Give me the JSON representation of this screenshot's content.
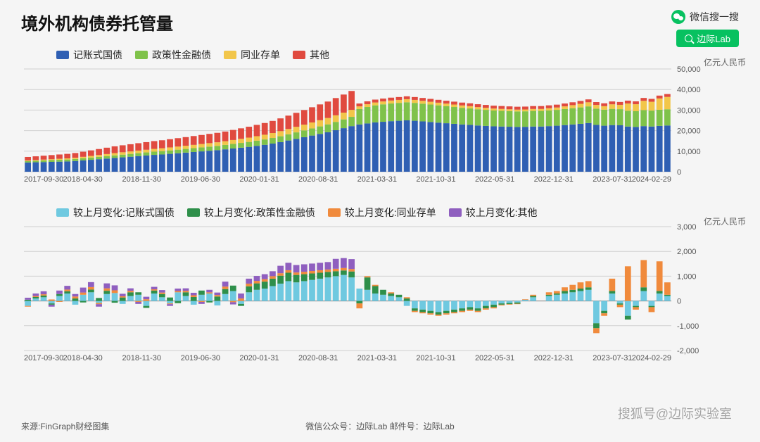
{
  "title": "境外机构债券托管量",
  "wechat_label": "微信搜一搜",
  "search_pill": "边际Lab",
  "source": "来源:FinGraph财经图集",
  "footer_center": "微信公众号：边际Lab  邮件号：边际Lab",
  "watermark": "搜狐号@边际实验室",
  "axis_unit": "亿元人民币",
  "colors": {
    "c1_s1": "#2f5fb3",
    "c1_s2": "#7fc24a",
    "c1_s3": "#f2c64a",
    "c1_s4": "#e04a3f",
    "c2_s1": "#6fc9e0",
    "c2_s2": "#2e8f4a",
    "c2_s3": "#f08a3c",
    "c2_s4": "#8f5fbf",
    "grid": "#d0d0d0",
    "bg": "#f5f5f5"
  },
  "legend1": [
    {
      "label": "记账式国债",
      "color": "#2f5fb3"
    },
    {
      "label": "政策性金融债",
      "color": "#7fc24a"
    },
    {
      "label": "同业存单",
      "color": "#f2c64a"
    },
    {
      "label": "其他",
      "color": "#e04a3f"
    }
  ],
  "legend2": [
    {
      "label": "较上月变化:记账式国债",
      "color": "#6fc9e0"
    },
    {
      "label": "较上月变化:政策性金融债",
      "color": "#2e8f4a"
    },
    {
      "label": "较上月变化:同业存单",
      "color": "#f08a3c"
    },
    {
      "label": "较上月变化:其他",
      "color": "#8f5fbf"
    }
  ],
  "x_ticks": [
    "2017-09-30",
    "2018-04-30",
    "2018-11-30",
    "2019-06-30",
    "2020-01-31",
    "2020-08-31",
    "2021-03-31",
    "2021-10-31",
    "2022-05-31",
    "2022-12-31",
    "2023-07-31",
    "2024-02-29"
  ],
  "chart1": {
    "type": "stacked-bar",
    "ylim": [
      0,
      50000
    ],
    "yticks": [
      0,
      10000,
      20000,
      30000,
      40000,
      50000
    ],
    "ytick_labels": [
      "0",
      "10,000",
      "20,000",
      "30,000",
      "40,000",
      "50,000"
    ],
    "n": 82,
    "series": {
      "s1": [
        4500,
        4600,
        4700,
        4800,
        4900,
        5000,
        5200,
        5500,
        5800,
        6100,
        6400,
        6700,
        7000,
        7300,
        7600,
        7900,
        8200,
        8400,
        8700,
        9000,
        9300,
        9600,
        9900,
        10200,
        10500,
        10900,
        11300,
        11700,
        12100,
        12600,
        13100,
        13700,
        14400,
        15200,
        16000,
        16800,
        17600,
        18400,
        19200,
        20200,
        21200,
        22200,
        23000,
        23500,
        24000,
        24300,
        24600,
        24800,
        25000,
        24800,
        24500,
        24200,
        23900,
        23600,
        23300,
        23000,
        22800,
        22500,
        22300,
        22100,
        22000,
        21900,
        21800,
        21850,
        22000,
        22000,
        22200,
        22400,
        22700,
        23000,
        23300,
        23700,
        22800,
        22400,
        22700,
        22600,
        22000,
        21800,
        22200,
        22000,
        22300,
        22500
      ],
      "s2": [
        700,
        750,
        800,
        850,
        900,
        950,
        1000,
        1050,
        1100,
        1150,
        1200,
        1260,
        1320,
        1380,
        1440,
        1500,
        1560,
        1620,
        1680,
        1740,
        1800,
        1870,
        1940,
        2010,
        2080,
        2160,
        2240,
        2320,
        2400,
        2500,
        2610,
        2730,
        2860,
        3000,
        3150,
        3310,
        3480,
        3660,
        3850,
        4050,
        4260,
        4500,
        7500,
        8000,
        8300,
        8500,
        8600,
        8700,
        8800,
        8700,
        8600,
        8500,
        8400,
        8300,
        8200,
        8100,
        8000,
        7900,
        7800,
        7700,
        7650,
        7600,
        7550,
        7550,
        7600,
        7600,
        7650,
        7700,
        7800,
        7900,
        8000,
        8100,
        7900,
        7800,
        7900,
        7850,
        7700,
        7650,
        7800,
        7750,
        7850,
        7900
      ],
      "s3": [
        300,
        350,
        400,
        450,
        500,
        550,
        600,
        700,
        800,
        900,
        1000,
        1100,
        1150,
        1200,
        1250,
        1300,
        1350,
        1400,
        1450,
        1500,
        1550,
        1600,
        1650,
        1700,
        1750,
        1800,
        1900,
        2000,
        2100,
        2200,
        2300,
        2400,
        2500,
        2600,
        2700,
        2800,
        2900,
        3000,
        3100,
        3200,
        3300,
        3400,
        1300,
        1350,
        1400,
        1400,
        1450,
        1450,
        1500,
        1450,
        1400,
        1350,
        1300,
        1250,
        1200,
        1150,
        1100,
        1050,
        1000,
        950,
        920,
        900,
        880,
        900,
        950,
        950,
        1050,
        1150,
        1300,
        1500,
        1750,
        2000,
        1800,
        1700,
        2200,
        2100,
        3500,
        3400,
        4500,
        4300,
        5500,
        6000
      ],
      "s4": [
        1700,
        1800,
        1900,
        2000,
        2100,
        2200,
        2300,
        2500,
        2700,
        2900,
        3100,
        3300,
        3400,
        3500,
        3600,
        3700,
        3800,
        3900,
        4000,
        4100,
        4200,
        4300,
        4400,
        4500,
        4600,
        4700,
        4900,
        5100,
        5300,
        5500,
        5700,
        5900,
        6200,
        6500,
        6800,
        7100,
        7400,
        7700,
        8000,
        8400,
        8800,
        9200,
        1400,
        1400,
        1400,
        1400,
        1400,
        1400,
        1400,
        1400,
        1400,
        1400,
        1400,
        1400,
        1400,
        1400,
        1400,
        1400,
        1400,
        1400,
        1400,
        1400,
        1400,
        1400,
        1400,
        1400,
        1400,
        1400,
        1400,
        1400,
        1400,
        1400,
        1400,
        1400,
        1400,
        1400,
        1400,
        1400,
        1400,
        1400,
        1400,
        1400
      ]
    }
  },
  "chart2": {
    "type": "stacked-bar-diverging",
    "ylim": [
      -2000,
      3000
    ],
    "yticks": [
      -2000,
      -1000,
      0,
      1000,
      2000,
      3000
    ],
    "ytick_labels": [
      "-2,000",
      "-1,000",
      "0",
      "1,000",
      "2,000",
      "3,000"
    ],
    "n": 82,
    "series": {
      "s1": [
        -200,
        100,
        150,
        -100,
        200,
        300,
        -150,
        250,
        350,
        -80,
        280,
        320,
        -120,
        200,
        250,
        -200,
        300,
        150,
        -100,
        350,
        200,
        -150,
        250,
        300,
        -180,
        280,
        400,
        -120,
        350,
        450,
        500,
        600,
        700,
        800,
        750,
        800,
        850,
        900,
        950,
        1000,
        1050,
        950,
        500,
        450,
        300,
        250,
        200,
        150,
        -200,
        -300,
        -350,
        -400,
        -450,
        -400,
        -350,
        -300,
        -250,
        -300,
        -200,
        -150,
        -100,
        -80,
        -60,
        50,
        150,
        0,
        200,
        250,
        300,
        350,
        400,
        450,
        -900,
        -400,
        300,
        -100,
        -600,
        -200,
        400,
        -200,
        300,
        200
      ],
      "s2": [
        50,
        60,
        70,
        -50,
        80,
        90,
        100,
        -60,
        110,
        120,
        130,
        -70,
        140,
        150,
        100,
        -80,
        120,
        130,
        140,
        -90,
        150,
        160,
        170,
        -60,
        180,
        200,
        220,
        -80,
        240,
        260,
        280,
        300,
        320,
        340,
        300,
        280,
        260,
        240,
        220,
        200,
        180,
        240,
        -100,
        500,
        300,
        200,
        100,
        100,
        100,
        -100,
        -100,
        -100,
        -100,
        -100,
        -100,
        -100,
        -100,
        -100,
        -100,
        -100,
        -50,
        -50,
        -50,
        0,
        50,
        0,
        50,
        50,
        100,
        100,
        100,
        100,
        -200,
        -100,
        100,
        -50,
        -150,
        -50,
        150,
        -50,
        100,
        50
      ],
      "s3": [
        -30,
        40,
        50,
        60,
        -40,
        70,
        80,
        90,
        100,
        -50,
        100,
        110,
        50,
        60,
        -40,
        70,
        50,
        60,
        -30,
        50,
        60,
        70,
        -40,
        50,
        60,
        100,
        -50,
        100,
        110,
        100,
        100,
        100,
        100,
        100,
        100,
        100,
        100,
        100,
        100,
        100,
        100,
        100,
        -200,
        50,
        50,
        0,
        50,
        0,
        50,
        -50,
        -50,
        -50,
        -50,
        -50,
        -50,
        -50,
        -50,
        -50,
        -50,
        -50,
        -30,
        -20,
        -20,
        20,
        50,
        0,
        100,
        100,
        150,
        200,
        250,
        250,
        -200,
        -100,
        500,
        -100,
        1400,
        -100,
        1100,
        -200,
        1200,
        500
      ],
      "s4": [
        80,
        100,
        120,
        -80,
        140,
        150,
        100,
        200,
        200,
        -100,
        200,
        200,
        100,
        100,
        -80,
        100,
        100,
        100,
        -70,
        100,
        100,
        100,
        -80,
        100,
        100,
        200,
        -90,
        200,
        200,
        200,
        200,
        200,
        300,
        300,
        300,
        300,
        300,
        300,
        300,
        400,
        400,
        400,
        0,
        0,
        0,
        0,
        0,
        0,
        0,
        0,
        0,
        0,
        0,
        0,
        0,
        0,
        0,
        0,
        0,
        0,
        0,
        0,
        0,
        0,
        0,
        0,
        0,
        0,
        0,
        0,
        0,
        0,
        0,
        0,
        0,
        0,
        0,
        0,
        0,
        0,
        0,
        0
      ]
    }
  }
}
